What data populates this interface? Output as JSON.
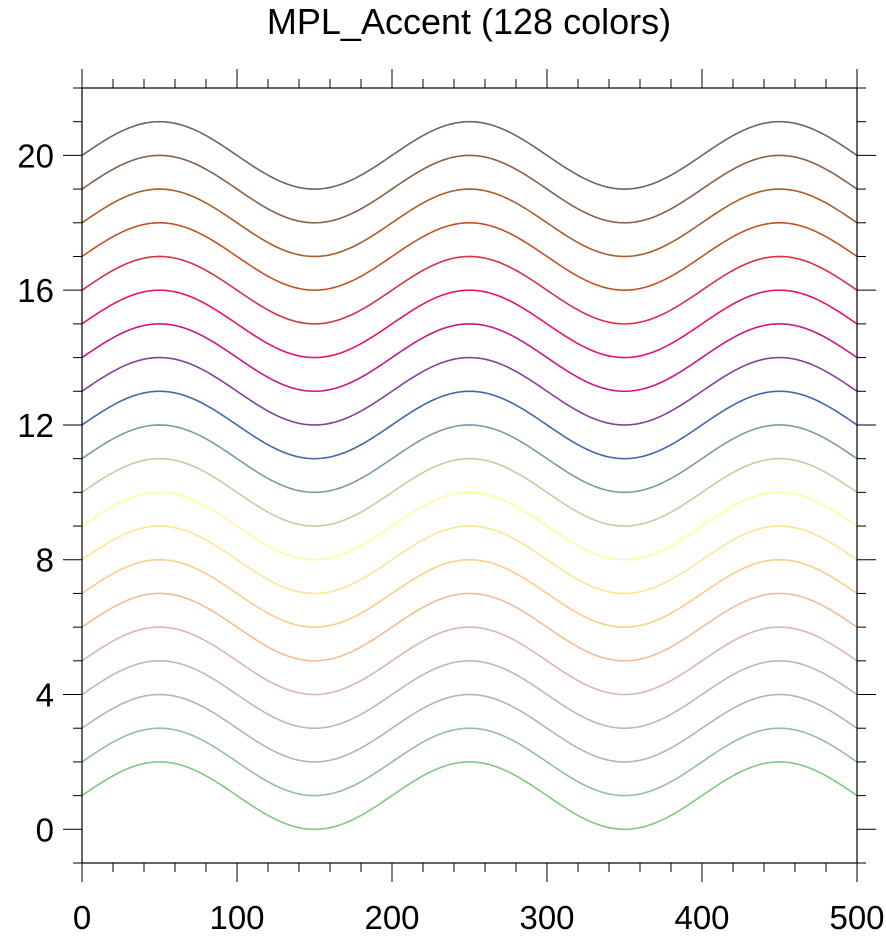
{
  "chart_data": {
    "type": "line",
    "title": "MPL_Accent (128 colors)",
    "xlabel": "",
    "ylabel": "",
    "xlim": [
      0,
      500
    ],
    "ylim": [
      -1,
      22
    ],
    "x_ticks": [
      0,
      100,
      200,
      300,
      400,
      500
    ],
    "x_minor_step": 20,
    "y_ticks": [
      0,
      4,
      8,
      12,
      16,
      20
    ],
    "y_minor_step": 1,
    "grid": false,
    "series_formula": "y = offset + sin(2*pi*x/200)",
    "series": [
      {
        "offset": 1,
        "color": "#7fc97f"
      },
      {
        "offset": 2,
        "color": "#96bf9e"
      },
      {
        "offset": 3,
        "color": "#adb5be"
      },
      {
        "offset": 4,
        "color": "#c5b0cc"
      },
      {
        "offset": 5,
        "color": "#dcb7af"
      },
      {
        "offset": 6,
        "color": "#f3bd92"
      },
      {
        "offset": 7,
        "color": "#fdcd8a"
      },
      {
        "offset": 8,
        "color": "#fee591"
      },
      {
        "offset": 9,
        "color": "#fffc98"
      },
      {
        "offset": 10,
        "color": "#bfd0a0"
      },
      {
        "offset": 11,
        "color": "#789ba9"
      },
      {
        "offset": 12,
        "color": "#4167ad"
      },
      {
        "offset": 13,
        "color": "#853f9b"
      },
      {
        "offset": 14,
        "color": "#c91888"
      },
      {
        "offset": 15,
        "color": "#e8106e"
      },
      {
        "offset": 16,
        "color": "#d63147"
      },
      {
        "offset": 17,
        "color": "#c45122"
      },
      {
        "offset": 18,
        "color": "#a85e2c"
      },
      {
        "offset": 19,
        "color": "#87624a"
      },
      {
        "offset": 20,
        "color": "#666666"
      }
    ]
  }
}
